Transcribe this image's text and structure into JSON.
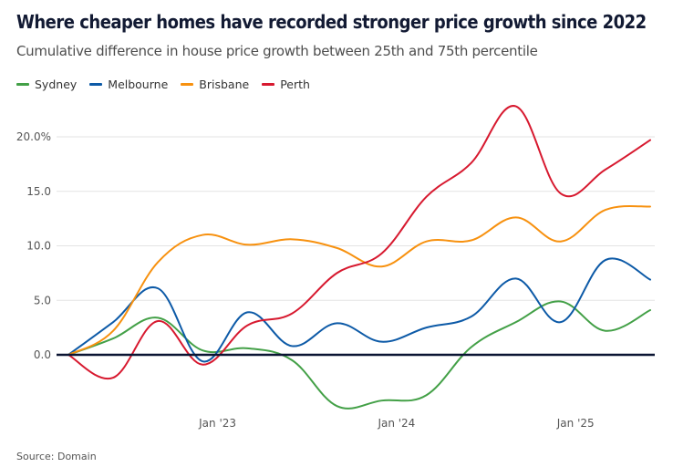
{
  "chart_data": {
    "type": "line",
    "title": "Where cheaper homes have recorded stronger price growth since 2022",
    "subtitle": "Cumulative difference in house price growth between 25th and 75th percentile",
    "xlabel": "",
    "ylabel": "",
    "ylim": [
      -5,
      22
    ],
    "yticks": [
      0,
      5,
      10,
      15,
      20
    ],
    "ytick_labels": [
      "0.0",
      "5.0",
      "10.0",
      "15.0",
      "20.0%"
    ],
    "xticks": [
      "Jan '23",
      "Jan '24",
      "Jan '25"
    ],
    "xtick_months": [
      10,
      22,
      34
    ],
    "grid": true,
    "legend_position": "top-left",
    "x": [
      "Mar 2022",
      "Jun 2022",
      "Sep 2022",
      "Dec 2022",
      "Mar 2023",
      "Jun 2023",
      "Sep 2023",
      "Dec 2023",
      "Mar 2024",
      "Jun 2024",
      "Sep 2024",
      "Dec 2024",
      "Mar 2025",
      "Jun 2025"
    ],
    "series": [
      {
        "name": "Sydney",
        "color": "#43a047",
        "values": [
          0,
          1.5,
          3.4,
          0.4,
          0.6,
          -0.5,
          -4.7,
          -4.2,
          -3.7,
          0.7,
          3.0,
          4.9,
          2.2,
          4.1
        ]
      },
      {
        "name": "Melbourne",
        "color": "#0d5aa7",
        "values": [
          0,
          3.0,
          6.1,
          -0.6,
          3.9,
          0.8,
          2.9,
          1.2,
          2.5,
          3.5,
          7.0,
          3.0,
          8.7,
          6.9
        ]
      },
      {
        "name": "Brisbane",
        "color": "#f7910f",
        "values": [
          0,
          2.2,
          8.5,
          11.0,
          10.1,
          10.6,
          9.8,
          8.1,
          10.4,
          10.5,
          12.6,
          10.4,
          13.3,
          13.6
        ]
      },
      {
        "name": "Perth",
        "color": "#d7192f",
        "values": [
          0,
          -2.1,
          3.1,
          -0.9,
          2.7,
          3.8,
          7.5,
          9.3,
          14.5,
          17.6,
          22.8,
          14.8,
          17.0,
          19.7
        ]
      }
    ]
  },
  "source": "Source: Domain"
}
